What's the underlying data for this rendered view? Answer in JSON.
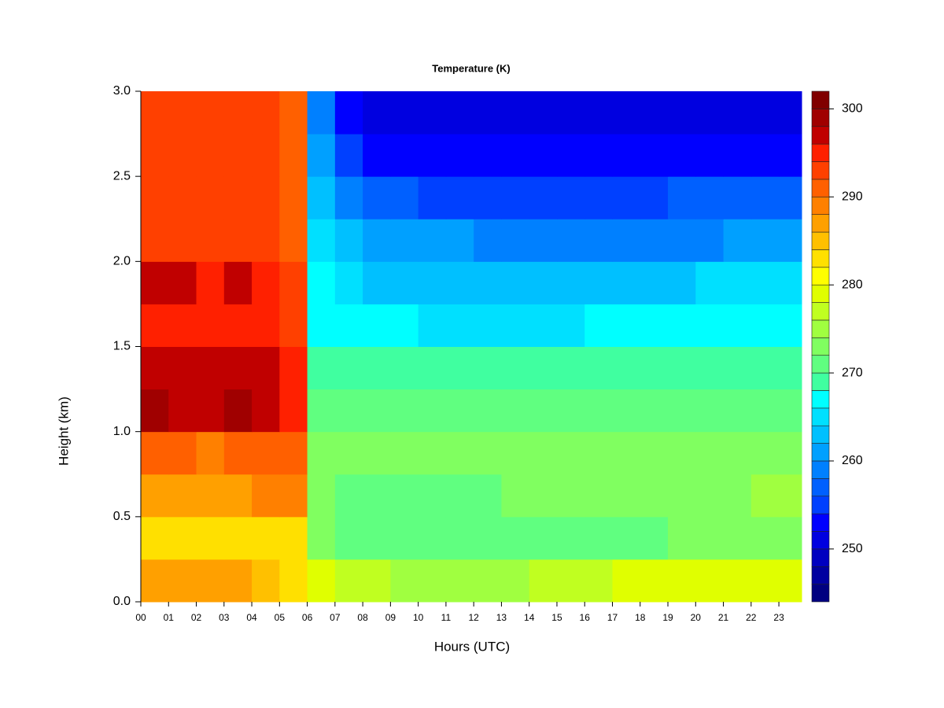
{
  "chart_data": {
    "type": "heatmap",
    "title": "Temperature (K)",
    "xlabel": "Hours (UTC)",
    "ylabel": "Height (km)",
    "x": [
      0,
      1,
      2,
      3,
      4,
      5,
      6,
      7,
      8,
      9,
      10,
      11,
      12,
      13,
      14,
      15,
      16,
      17,
      18,
      19,
      20,
      21,
      22,
      23
    ],
    "y": [
      0,
      0.25,
      0.5,
      0.75,
      1,
      1.25,
      1.5,
      1.75,
      2,
      2.25,
      2.5,
      2.75
    ],
    "z": [
      [
        286,
        286,
        286,
        286,
        284,
        282,
        278,
        276,
        276,
        275,
        275,
        275,
        275,
        275,
        276,
        276,
        277,
        278,
        278,
        279,
        279,
        279,
        278,
        278
      ],
      [
        282,
        282,
        282,
        282,
        282,
        283,
        272,
        270,
        270,
        270,
        270,
        270,
        270,
        270,
        270,
        270,
        271,
        271,
        271,
        272,
        272,
        272,
        273,
        273
      ],
      [
        287,
        287,
        286,
        287,
        288,
        288,
        272,
        271,
        271,
        271,
        271,
        271,
        271,
        272,
        272,
        272,
        272,
        273,
        273,
        273,
        273,
        273,
        274,
        274
      ],
      [
        291,
        290,
        289,
        290,
        291,
        290,
        272,
        272,
        272,
        272,
        272,
        272,
        272,
        272,
        272,
        272,
        272,
        273,
        273,
        273,
        273,
        273,
        273,
        273
      ],
      [
        298,
        297,
        297,
        298,
        296,
        294,
        270,
        270,
        270,
        270,
        270,
        270,
        270,
        271,
        271,
        271,
        271,
        271,
        271,
        271,
        271,
        271,
        271,
        271
      ],
      [
        297,
        297,
        296,
        297,
        296,
        294,
        268,
        268,
        268,
        268,
        268,
        268,
        268,
        268,
        268,
        269,
        269,
        269,
        269,
        269,
        269,
        269,
        269,
        269
      ],
      [
        294,
        294,
        294,
        294,
        294,
        292,
        266,
        266,
        266,
        266,
        265,
        265,
        265,
        265,
        265,
        265,
        266,
        266,
        266,
        266,
        266,
        266,
        266,
        266
      ],
      [
        296,
        296,
        295,
        296,
        295,
        293,
        266,
        264,
        263,
        263,
        263,
        263,
        263,
        263,
        263,
        263,
        263,
        263,
        263,
        263,
        264,
        264,
        264,
        264
      ],
      [
        293,
        293,
        292,
        293,
        292,
        291,
        264,
        262,
        261,
        260,
        260,
        260,
        259,
        259,
        259,
        259,
        259,
        259,
        259,
        259,
        259,
        260,
        260,
        260
      ],
      [
        293,
        293,
        292,
        292,
        292,
        291,
        262,
        258,
        256,
        256,
        255,
        255,
        255,
        255,
        255,
        255,
        255,
        255,
        255,
        256,
        256,
        256,
        256,
        256
      ],
      [
        293,
        293,
        292,
        292,
        292,
        291,
        260,
        254,
        253,
        252,
        252,
        252,
        252,
        252,
        252,
        252,
        252,
        252,
        252,
        253,
        253,
        253,
        253,
        253
      ],
      [
        293,
        293,
        292,
        292,
        292,
        291,
        258,
        252,
        251,
        250,
        250,
        250,
        250,
        250,
        250,
        250,
        250,
        250,
        250,
        251,
        251,
        251,
        251,
        251
      ]
    ],
    "xlim": [
      0,
      23.82
    ],
    "ylim": [
      0,
      3
    ],
    "xticks": [
      {
        "value": 0,
        "label": "00"
      },
      {
        "value": 1,
        "label": "01"
      },
      {
        "value": 2,
        "label": "02"
      },
      {
        "value": 3,
        "label": "03"
      },
      {
        "value": 4,
        "label": "04"
      },
      {
        "value": 5,
        "label": "05"
      },
      {
        "value": 6,
        "label": "06"
      },
      {
        "value": 7,
        "label": "07"
      },
      {
        "value": 8,
        "label": "08"
      },
      {
        "value": 9,
        "label": "09"
      },
      {
        "value": 10,
        "label": "10"
      },
      {
        "value": 11,
        "label": "11"
      },
      {
        "value": 12,
        "label": "12"
      },
      {
        "value": 13,
        "label": "13"
      },
      {
        "value": 14,
        "label": "14"
      },
      {
        "value": 15,
        "label": "15"
      },
      {
        "value": 16,
        "label": "16"
      },
      {
        "value": 17,
        "label": "17"
      },
      {
        "value": 18,
        "label": "18"
      },
      {
        "value": 19,
        "label": "19"
      },
      {
        "value": 20,
        "label": "20"
      },
      {
        "value": 21,
        "label": "21"
      },
      {
        "value": 22,
        "label": "22"
      },
      {
        "value": 23,
        "label": "23"
      }
    ],
    "yticks": [
      {
        "value": 0,
        "label": "0.0"
      },
      {
        "value": 0.5,
        "label": "0.5"
      },
      {
        "value": 1,
        "label": "1.0"
      },
      {
        "value": 1.5,
        "label": "1.5"
      },
      {
        "value": 2,
        "label": "2.0"
      },
      {
        "value": 2.5,
        "label": "2.5"
      },
      {
        "value": 3,
        "label": "3.0"
      }
    ],
    "colorbar": {
      "lim": [
        244,
        302
      ],
      "ticks": [
        250,
        260,
        270,
        280,
        290,
        300
      ],
      "levels": [
        244,
        246,
        248,
        250,
        252,
        254,
        256,
        258,
        260,
        262,
        264,
        266,
        268,
        270,
        272,
        274,
        276,
        278,
        280,
        282,
        284,
        286,
        288,
        290,
        292,
        294,
        296,
        298,
        300,
        302
      ],
      "colors": [
        "#000080",
        "#0000a0",
        "#0000c0",
        "#0000e0",
        "#0000ff",
        "#0040ff",
        "#0060ff",
        "#0080ff",
        "#00a0ff",
        "#00c0ff",
        "#00e0ff",
        "#00ffff",
        "#40ffa0",
        "#60ff80",
        "#80ff60",
        "#a0ff40",
        "#c0ff20",
        "#e0ff00",
        "#ffff00",
        "#ffe000",
        "#ffc000",
        "#ffa000",
        "#ff8000",
        "#ff6000",
        "#ff4000",
        "#ff2000",
        "#c00000",
        "#a00000",
        "#800000"
      ]
    }
  }
}
